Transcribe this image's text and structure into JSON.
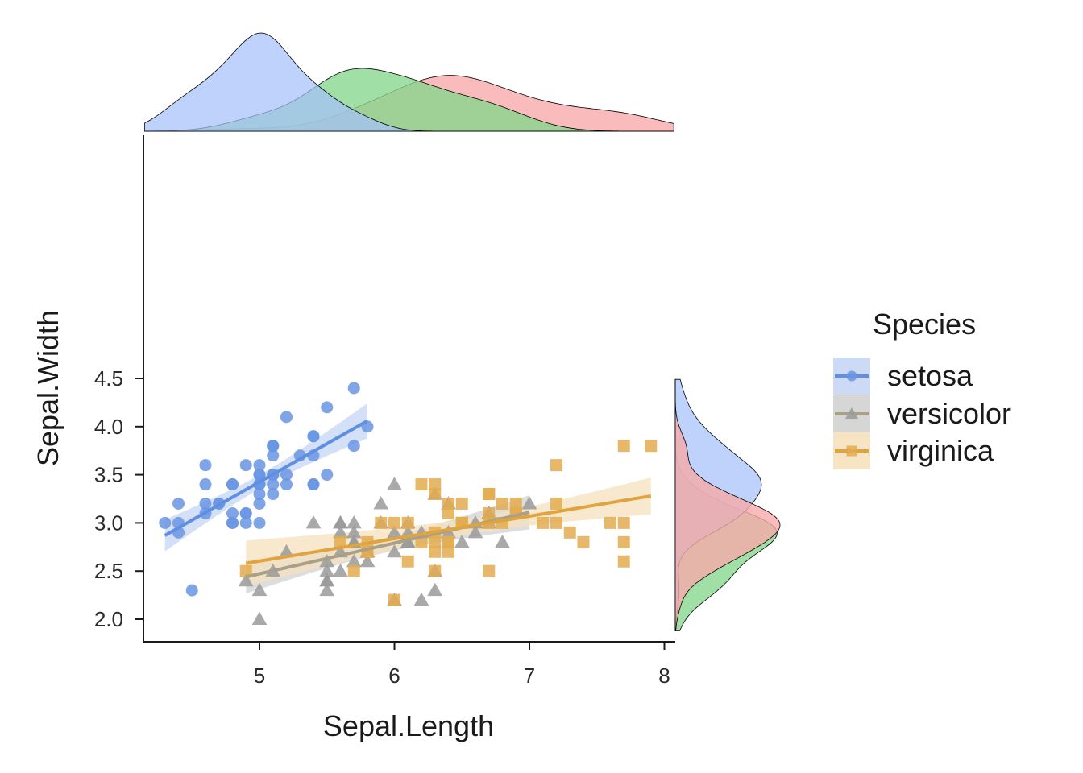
{
  "chart_data": {
    "type": "scatter",
    "xlabel": "Sepal.Length",
    "ylabel": "Sepal.Width",
    "xlim": [
      4.15,
      8.08
    ],
    "ylim": [
      1.88,
      4.5
    ],
    "x_ticks": [
      "5",
      "6",
      "7",
      "8"
    ],
    "y_ticks": [
      "2.0",
      "2.5",
      "3.0",
      "3.5",
      "4.0",
      "4.5"
    ],
    "grid": false,
    "legend": {
      "title": "Species",
      "placement": "right",
      "entries": [
        "setosa",
        "versicolor",
        "virginica"
      ]
    },
    "series": [
      {
        "name": "setosa",
        "marker": "circle",
        "color": "#6a95e3",
        "x": [
          5.1,
          4.9,
          4.7,
          4.6,
          5.0,
          5.4,
          4.6,
          5.0,
          4.4,
          4.9,
          5.4,
          4.8,
          4.8,
          4.3,
          5.8,
          5.7,
          5.4,
          5.1,
          5.7,
          5.1,
          5.4,
          5.1,
          4.6,
          5.1,
          4.8,
          5.0,
          5.0,
          5.2,
          5.2,
          4.7,
          4.8,
          5.4,
          5.2,
          5.5,
          4.9,
          5.0,
          5.5,
          4.9,
          4.4,
          5.1,
          5.0,
          4.5,
          4.4,
          5.0,
          5.1,
          4.8,
          5.1,
          4.6,
          5.3,
          5.0
        ],
        "y": [
          3.5,
          3.0,
          3.2,
          3.1,
          3.6,
          3.9,
          3.4,
          3.4,
          2.9,
          3.1,
          3.7,
          3.4,
          3.0,
          3.0,
          4.0,
          4.4,
          3.9,
          3.5,
          3.8,
          3.8,
          3.4,
          3.7,
          3.6,
          3.3,
          3.4,
          3.0,
          3.4,
          3.5,
          3.4,
          3.2,
          3.1,
          3.4,
          4.1,
          4.2,
          3.1,
          3.2,
          3.5,
          3.6,
          3.0,
          3.4,
          3.5,
          2.3,
          3.2,
          3.5,
          3.8,
          3.0,
          3.8,
          3.2,
          3.7,
          3.3
        ],
        "fit": {
          "x": [
            4.3,
            5.8
          ],
          "y": [
            2.87,
            4.06
          ]
        }
      },
      {
        "name": "versicolor",
        "marker": "triangle",
        "color": "#9a9a9a",
        "x": [
          7.0,
          6.4,
          6.9,
          5.5,
          6.5,
          5.7,
          6.3,
          4.9,
          6.6,
          5.2,
          5.0,
          5.9,
          6.0,
          6.1,
          5.6,
          6.7,
          5.6,
          5.8,
          6.2,
          5.6,
          5.9,
          6.1,
          6.3,
          6.1,
          6.4,
          6.6,
          6.8,
          6.7,
          6.0,
          5.7,
          5.5,
          5.5,
          5.8,
          6.0,
          5.4,
          6.0,
          6.7,
          6.3,
          5.6,
          5.5,
          5.5,
          6.1,
          5.8,
          5.0,
          5.6,
          5.7,
          5.7,
          6.2,
          5.1,
          5.7
        ],
        "y": [
          3.2,
          3.2,
          3.1,
          2.3,
          2.8,
          2.8,
          3.3,
          2.4,
          2.9,
          2.7,
          2.0,
          3.0,
          2.2,
          2.9,
          2.9,
          3.1,
          3.0,
          2.7,
          2.2,
          2.5,
          3.2,
          2.8,
          2.5,
          2.8,
          2.9,
          3.0,
          2.8,
          3.0,
          2.9,
          2.6,
          2.4,
          2.4,
          2.7,
          2.7,
          3.0,
          3.4,
          3.1,
          2.3,
          3.0,
          2.5,
          2.6,
          3.0,
          2.6,
          2.3,
          2.7,
          3.0,
          2.9,
          2.9,
          2.5,
          2.8
        ],
        "fit": {
          "x": [
            4.9,
            7.0
          ],
          "y": [
            2.44,
            3.11
          ]
        }
      },
      {
        "name": "virginica",
        "marker": "square",
        "color": "#e3ac4f",
        "x": [
          6.3,
          5.8,
          7.1,
          6.3,
          6.5,
          7.6,
          4.9,
          7.3,
          6.7,
          7.2,
          6.5,
          6.4,
          6.8,
          5.7,
          5.8,
          6.4,
          6.5,
          7.7,
          7.7,
          6.0,
          6.9,
          5.6,
          7.7,
          6.3,
          6.7,
          7.2,
          6.2,
          6.1,
          6.4,
          7.2,
          7.4,
          7.9,
          6.4,
          6.3,
          6.1,
          7.7,
          6.3,
          6.4,
          6.0,
          6.9,
          6.7,
          6.9,
          5.8,
          6.8,
          6.7,
          6.7,
          6.3,
          6.5,
          6.2,
          5.9
        ],
        "y": [
          3.3,
          2.7,
          3.0,
          2.9,
          3.0,
          3.0,
          2.5,
          2.9,
          2.5,
          3.6,
          3.2,
          2.7,
          3.0,
          2.5,
          2.8,
          3.2,
          3.0,
          3.8,
          2.6,
          2.2,
          3.2,
          2.8,
          2.8,
          2.7,
          3.3,
          3.2,
          2.8,
          3.0,
          2.8,
          3.0,
          2.8,
          3.8,
          2.8,
          2.8,
          2.6,
          3.0,
          3.4,
          3.1,
          3.0,
          3.1,
          3.1,
          3.1,
          2.7,
          3.2,
          3.3,
          3.0,
          2.5,
          3.0,
          3.4,
          3.0
        ],
        "fit": {
          "x": [
            4.9,
            7.9
          ],
          "y": [
            2.58,
            3.28
          ]
        }
      }
    ],
    "marginal_density": {
      "setosa_fill": "#a5c0fa",
      "versicolor_fill": "#88d78f",
      "virginica_fill": "#f7aaaa"
    }
  }
}
